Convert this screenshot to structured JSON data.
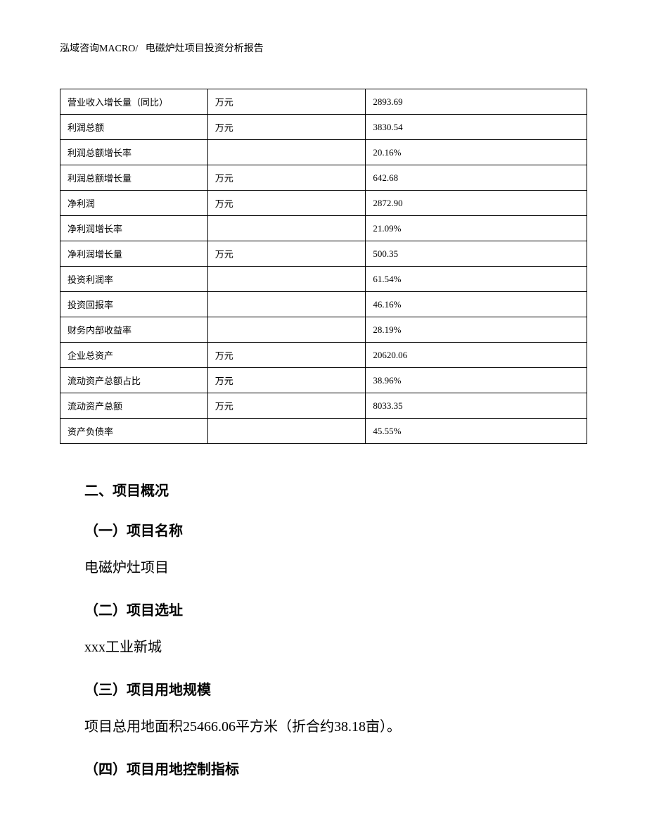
{
  "header": {
    "company": "泓域咨询MACRO/",
    "title": "电磁炉灶项目投资分析报告"
  },
  "table": {
    "rows": [
      {
        "label": "营业收入增长量（同比）",
        "unit": "万元",
        "value": "2893.69"
      },
      {
        "label": "利润总额",
        "unit": "万元",
        "value": "3830.54"
      },
      {
        "label": "利润总额增长率",
        "unit": "",
        "value": "20.16%"
      },
      {
        "label": "利润总额增长量",
        "unit": "万元",
        "value": "642.68"
      },
      {
        "label": "净利润",
        "unit": "万元",
        "value": "2872.90"
      },
      {
        "label": "净利润增长率",
        "unit": "",
        "value": "21.09%"
      },
      {
        "label": "净利润增长量",
        "unit": "万元",
        "value": "500.35"
      },
      {
        "label": "投资利润率",
        "unit": "",
        "value": "61.54%"
      },
      {
        "label": "投资回报率",
        "unit": "",
        "value": "46.16%"
      },
      {
        "label": "财务内部收益率",
        "unit": "",
        "value": "28.19%"
      },
      {
        "label": "企业总资产",
        "unit": "万元",
        "value": "20620.06"
      },
      {
        "label": "流动资产总额占比",
        "unit": "万元",
        "value": "38.96%"
      },
      {
        "label": "流动资产总额",
        "unit": "万元",
        "value": "8033.35"
      },
      {
        "label": "资产负债率",
        "unit": "",
        "value": "45.55%"
      }
    ]
  },
  "sections": {
    "mainHeading": "二、项目概况",
    "sub1": {
      "heading": "（一）项目名称",
      "body": "电磁炉灶项目"
    },
    "sub2": {
      "heading": "（二）项目选址",
      "body": "xxx工业新城"
    },
    "sub3": {
      "heading": "（三）项目用地规模",
      "body": "项目总用地面积25466.06平方米（折合约38.18亩）。"
    },
    "sub4": {
      "heading": "（四）项目用地控制指标"
    }
  }
}
